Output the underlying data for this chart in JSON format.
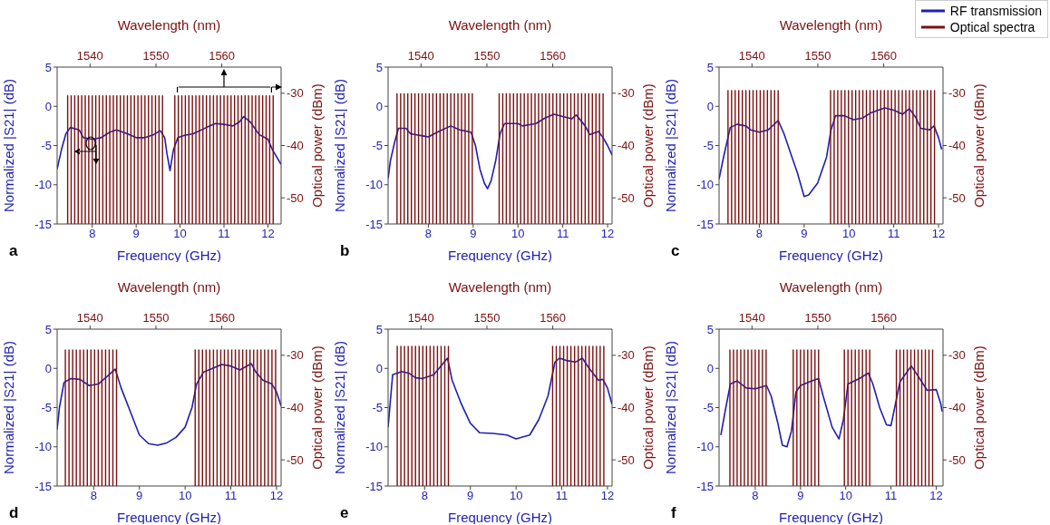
{
  "chart_data": [
    {
      "type": "line",
      "xlabel": "Frequency (GHz)",
      "x2label": "Wavelength (nm)",
      "ylabel": "Normalized |S21| (dB)",
      "y2label": "Optical power (dBm)",
      "annotations": [
        "a"
      ],
      "xlim": [
        7.2,
        12.3
      ],
      "xticks": [
        8,
        9,
        10,
        11,
        12
      ],
      "x2lim": [
        1535,
        1569
      ],
      "x2ticks": [
        1540,
        1550,
        1560
      ],
      "ylim": [
        -15,
        5
      ],
      "yticks": [
        -15,
        -10,
        -5,
        0,
        5
      ],
      "y2lim": [
        -55,
        -25
      ],
      "y2ticks": [
        -50,
        -40,
        -30
      ],
      "marker": "none",
      "line_style": "solid",
      "series": [
        {
          "type": "bar",
          "axis": "y2",
          "color": "#7b1010",
          "x": [
            7.44,
            7.52,
            7.6,
            7.68,
            7.76,
            7.84,
            7.92,
            8.0,
            8.08,
            8.16,
            8.24,
            8.32,
            8.4,
            8.48,
            8.56,
            8.64,
            8.72,
            8.8,
            8.88,
            8.96,
            9.04,
            9.12,
            9.2,
            9.28,
            9.36,
            9.44,
            9.52,
            9.6,
            9.88,
            9.96,
            10.04,
            10.12,
            10.2,
            10.28,
            10.36,
            10.44,
            10.52,
            10.6,
            10.68,
            10.76,
            10.84,
            10.92,
            11.0,
            11.08,
            11.16,
            11.24,
            11.32,
            11.4,
            11.48,
            11.56,
            11.64,
            11.72,
            11.8,
            11.88,
            11.96,
            12.04,
            12.12
          ],
          "base": [
            -55,
            -55,
            -55,
            -55,
            -55,
            -55,
            -55,
            -55,
            -55,
            -55,
            -55,
            -55,
            -55,
            -55,
            -55,
            -55,
            -55,
            -55,
            -55,
            -55,
            -55,
            -55,
            -55,
            -55,
            -55,
            -55,
            -55,
            -55,
            -55,
            -55,
            -55,
            -55,
            -55,
            -55,
            -55,
            -55,
            -55,
            -55,
            -55,
            -55,
            -55,
            -55,
            -55,
            -55,
            -55,
            -55,
            -55,
            -55,
            -55,
            -55,
            -55,
            -55,
            -55,
            -55,
            -55,
            -55,
            -55
          ],
          "values": [
            24.6,
            24.6,
            24.6,
            24.6,
            24.6,
            24.6,
            24.6,
            24.6,
            24.6,
            24.6,
            24.6,
            24.6,
            24.6,
            24.6,
            24.6,
            24.6,
            24.6,
            24.6,
            24.6,
            24.6,
            24.6,
            24.6,
            24.6,
            24.6,
            24.6,
            24.6,
            24.6,
            24.6,
            24.6,
            24.6,
            24.6,
            24.6,
            24.6,
            24.6,
            24.6,
            24.6,
            24.6,
            24.6,
            24.6,
            24.6,
            24.6,
            24.6,
            24.6,
            24.6,
            24.6,
            24.6,
            24.6,
            24.6,
            24.6,
            24.6,
            24.6,
            24.6,
            24.6,
            24.6,
            24.6,
            24.6,
            24.6
          ]
        },
        {
          "color": "#1f1fb0",
          "x": [
            7.2,
            7.3,
            7.4,
            7.5,
            7.7,
            7.8,
            8.0,
            8.2,
            8.4,
            8.55,
            8.8,
            9.0,
            9.2,
            9.4,
            9.55,
            9.65,
            9.7,
            9.77,
            9.85,
            9.95,
            10.1,
            10.3,
            10.6,
            10.8,
            11.0,
            11.2,
            11.35,
            11.45,
            11.6,
            11.8,
            12.0,
            12.1,
            12.3
          ],
          "values": [
            -8,
            -5.5,
            -3.5,
            -2.7,
            -3,
            -4,
            -4.2,
            -4,
            -3.3,
            -3,
            -3.5,
            -4,
            -4,
            -3.6,
            -3.1,
            -4,
            -6,
            -8.2,
            -5.5,
            -4,
            -3.7,
            -3.5,
            -2.7,
            -2.2,
            -2.3,
            -2.5,
            -2,
            -1.3,
            -2,
            -3.6,
            -4.2,
            -5.5,
            -7.4
          ]
        }
      ]
    },
    {
      "type": "line",
      "xlabel": "Frequency (GHz)",
      "x2label": "Wavelength (nm)",
      "ylabel": "Normalized |S21| (dB)",
      "y2label": "Optical power (dBm)",
      "annotations": [
        "b"
      ],
      "xlim": [
        7.1,
        12.1
      ],
      "xticks": [
        8,
        9,
        10,
        11,
        12
      ],
      "x2lim": [
        1535,
        1569
      ],
      "x2ticks": [
        1540,
        1550,
        1560
      ],
      "ylim": [
        -15,
        5
      ],
      "yticks": [
        -15,
        -10,
        -5,
        0,
        5
      ],
      "y2lim": [
        -55,
        -25
      ],
      "y2ticks": [
        -50,
        -40,
        -30
      ],
      "marker": "none",
      "line_style": "solid",
      "series": [
        {
          "type": "bar",
          "axis": "y2",
          "color": "#7b1010",
          "x": [
            7.3,
            7.38,
            7.46,
            7.54,
            7.62,
            7.7,
            7.78,
            7.86,
            7.94,
            8.02,
            8.1,
            8.18,
            8.26,
            8.34,
            8.42,
            8.5,
            8.58,
            8.66,
            8.74,
            8.82,
            8.9,
            8.98,
            9.58,
            9.66,
            9.74,
            9.82,
            9.9,
            9.98,
            10.06,
            10.14,
            10.22,
            10.3,
            10.38,
            10.46,
            10.54,
            10.62,
            10.7,
            10.78,
            10.86,
            10.94,
            11.02,
            11.1,
            11.18,
            11.26,
            11.34,
            11.42,
            11.5,
            11.58,
            11.66,
            11.74,
            11.82,
            11.9
          ],
          "base": [
            -55,
            -55,
            -55,
            -55,
            -55,
            -55,
            -55,
            -55,
            -55,
            -55,
            -55,
            -55,
            -55,
            -55,
            -55,
            -55,
            -55,
            -55,
            -55,
            -55,
            -55,
            -55,
            -55,
            -55,
            -55,
            -55,
            -55,
            -55,
            -55,
            -55,
            -55,
            -55,
            -55,
            -55,
            -55,
            -55,
            -55,
            -55,
            -55,
            -55,
            -55,
            -55,
            -55,
            -55,
            -55,
            -55,
            -55,
            -55,
            -55,
            -55,
            -55,
            -55
          ],
          "values": [
            25,
            25,
            25,
            25,
            25,
            25,
            25,
            25,
            25,
            25,
            25,
            25,
            25,
            25,
            25,
            25,
            25,
            25,
            25,
            25,
            25,
            25,
            25,
            25,
            25,
            25,
            25,
            25,
            25,
            25,
            25,
            25,
            25,
            25,
            25,
            25,
            25,
            25,
            25,
            25,
            25,
            25,
            25,
            25,
            25,
            25,
            25,
            25,
            25,
            25,
            25,
            25
          ]
        },
        {
          "color": "#1f1fb0",
          "x": [
            7.1,
            7.15,
            7.25,
            7.33,
            7.5,
            7.6,
            7.9,
            8.0,
            8.2,
            8.5,
            8.7,
            8.95,
            9.05,
            9.15,
            9.25,
            9.32,
            9.4,
            9.5,
            9.6,
            9.7,
            10.0,
            10.1,
            10.4,
            10.6,
            10.8,
            11.0,
            11.2,
            11.3,
            11.5,
            11.6,
            11.8,
            11.9,
            12.0,
            12.1
          ],
          "values": [
            -9.2,
            -7,
            -4.5,
            -2.8,
            -2.8,
            -3.5,
            -3.8,
            -3.9,
            -3.3,
            -2.5,
            -3,
            -3.3,
            -5,
            -8,
            -9.8,
            -10.5,
            -9.5,
            -7,
            -3.5,
            -2.2,
            -2.2,
            -2.5,
            -2.2,
            -1.5,
            -1,
            -1.3,
            -1.6,
            -1.1,
            -2.5,
            -3.6,
            -3.2,
            -4,
            -5,
            -6.2
          ]
        }
      ]
    },
    {
      "type": "line",
      "xlabel": "Frequency (GHz)",
      "x2label": "Wavelength (nm)",
      "ylabel": "Normalized |S21| (dB)",
      "y2label": "Optical power (dBm)",
      "annotations": [
        "c"
      ],
      "legend": "top right",
      "xlim": [
        7.1,
        12.1
      ],
      "xticks": [
        8,
        9,
        10,
        11,
        12
      ],
      "x2lim": [
        1535,
        1569
      ],
      "x2ticks": [
        1540,
        1550,
        1560
      ],
      "ylim": [
        -15,
        5
      ],
      "yticks": [
        -15,
        -10,
        -5,
        0,
        5
      ],
      "y2lim": [
        -55,
        -25
      ],
      "y2ticks": [
        -50,
        -40,
        -30
      ],
      "marker": "none",
      "line_style": "solid",
      "series": [
        {
          "type": "bar",
          "name": "Optical spectra",
          "axis": "y2",
          "color": "#7b1010",
          "x": [
            7.3,
            7.38,
            7.46,
            7.54,
            7.62,
            7.7,
            7.78,
            7.86,
            7.94,
            8.02,
            8.1,
            8.18,
            8.26,
            8.34,
            8.42,
            9.59,
            9.67,
            9.75,
            9.83,
            9.91,
            9.99,
            10.07,
            10.15,
            10.23,
            10.31,
            10.39,
            10.47,
            10.55,
            10.63,
            10.71,
            10.79,
            10.87,
            10.95,
            11.03,
            11.11,
            11.19,
            11.27,
            11.35,
            11.43,
            11.51,
            11.59,
            11.67,
            11.75,
            11.83,
            11.91
          ],
          "base": [
            -55,
            -55,
            -55,
            -55,
            -55,
            -55,
            -55,
            -55,
            -55,
            -55,
            -55,
            -55,
            -55,
            -55,
            -55,
            -55,
            -55,
            -55,
            -55,
            -55,
            -55,
            -55,
            -55,
            -55,
            -55,
            -55,
            -55,
            -55,
            -55,
            -55,
            -55,
            -55,
            -55,
            -55,
            -55,
            -55,
            -55,
            -55,
            -55,
            -55,
            -55,
            -55,
            -55,
            -55,
            -55
          ],
          "values": [
            25.6,
            25.6,
            25.6,
            25.6,
            25.6,
            25.6,
            25.6,
            25.6,
            25.6,
            25.6,
            25.6,
            25.6,
            25.6,
            25.6,
            25.6,
            25.6,
            25.6,
            25.6,
            25.6,
            25.6,
            25.6,
            25.6,
            25.6,
            25.6,
            25.6,
            25.6,
            25.6,
            25.6,
            25.6,
            25.6,
            25.6,
            25.6,
            25.6,
            25.6,
            25.6,
            25.6,
            25.6,
            25.6,
            25.6,
            25.6,
            25.6,
            25.6,
            25.6,
            25.6,
            25.6
          ]
        },
        {
          "name": "RF transmission",
          "color": "#1f1fb0",
          "x": [
            7.1,
            7.2,
            7.35,
            7.5,
            7.7,
            7.8,
            8.0,
            8.2,
            8.35,
            8.42,
            8.55,
            8.7,
            8.85,
            9.0,
            9.1,
            9.3,
            9.5,
            9.6,
            9.7,
            9.9,
            10.1,
            10.3,
            10.5,
            10.8,
            11.0,
            11.2,
            11.35,
            11.5,
            11.6,
            11.8,
            11.9,
            12.0,
            12.07
          ],
          "values": [
            -9.3,
            -6.5,
            -2.7,
            -2.3,
            -2.5,
            -3,
            -3.3,
            -3,
            -2.2,
            -1.8,
            -3.5,
            -6,
            -8.5,
            -11.5,
            -11.3,
            -9.8,
            -6.5,
            -3,
            -1.2,
            -1.2,
            -1.7,
            -1.5,
            -0.8,
            -0.2,
            -0.5,
            -1,
            -0.3,
            -1.5,
            -2.8,
            -3,
            -2.5,
            -4,
            -5.5
          ]
        }
      ]
    },
    {
      "type": "line",
      "xlabel": "Frequency (GHz)",
      "x2label": "Wavelength (nm)",
      "ylabel": "Normalized |S21| (dB)",
      "y2label": "Optical power (dBm)",
      "annotations": [
        "d"
      ],
      "xlim": [
        7.2,
        12.1
      ],
      "xticks": [
        8,
        9,
        10,
        11,
        12
      ],
      "x2lim": [
        1535,
        1569
      ],
      "x2ticks": [
        1540,
        1550,
        1560
      ],
      "ylim": [
        -15,
        5
      ],
      "yticks": [
        -15,
        -10,
        -5,
        0,
        5
      ],
      "y2lim": [
        -55,
        -25
      ],
      "y2ticks": [
        -50,
        -40,
        -30
      ],
      "marker": "none",
      "line_style": "solid",
      "series": [
        {
          "type": "bar",
          "axis": "y2",
          "color": "#7b1010",
          "x": [
            7.38,
            7.46,
            7.54,
            7.62,
            7.7,
            7.78,
            7.86,
            7.94,
            8.02,
            8.1,
            8.18,
            8.26,
            8.34,
            8.42,
            8.5,
            10.22,
            10.3,
            10.38,
            10.46,
            10.54,
            10.62,
            10.7,
            10.78,
            10.86,
            10.94,
            11.02,
            11.1,
            11.18,
            11.26,
            11.34,
            11.42,
            11.5,
            11.58,
            11.66,
            11.74,
            11.82,
            11.9,
            11.98
          ],
          "base": [
            -55,
            -55,
            -55,
            -55,
            -55,
            -55,
            -55,
            -55,
            -55,
            -55,
            -55,
            -55,
            -55,
            -55,
            -55,
            -55,
            -55,
            -55,
            -55,
            -55,
            -55,
            -55,
            -55,
            -55,
            -55,
            -55,
            -55,
            -55,
            -55,
            -55,
            -55,
            -55,
            -55,
            -55,
            -55,
            -55,
            -55,
            -55
          ],
          "values": [
            26.1,
            26.1,
            26.1,
            26.1,
            26.1,
            26.1,
            26.1,
            26.1,
            26.1,
            26.1,
            26.1,
            26.1,
            26.1,
            26.1,
            26.1,
            26.1,
            26.1,
            26.1,
            26.1,
            26.1,
            26.1,
            26.1,
            26.1,
            26.1,
            26.1,
            26.1,
            26.1,
            26.1,
            26.1,
            26.1,
            26.1,
            26.1,
            26.1,
            26.1,
            26.1,
            26.1,
            26.1,
            26.1
          ]
        },
        {
          "color": "#1f1fb0",
          "x": [
            7.2,
            7.25,
            7.35,
            7.5,
            7.7,
            7.9,
            8.1,
            8.3,
            8.47,
            8.6,
            8.8,
            9.0,
            9.2,
            9.4,
            9.6,
            9.8,
            10.0,
            10.15,
            10.25,
            10.4,
            10.6,
            10.8,
            11.0,
            11.2,
            11.45,
            11.55,
            11.7,
            11.9,
            12.0,
            12.1
          ],
          "values": [
            -7.8,
            -5,
            -1.8,
            -1.3,
            -1.4,
            -2.2,
            -2,
            -1,
            -0.1,
            -2.5,
            -5.5,
            -8.5,
            -9.6,
            -9.8,
            -9.5,
            -8.8,
            -7.5,
            -5,
            -2,
            -0.5,
            0,
            0.5,
            0.3,
            -0.2,
            0.6,
            -0.5,
            -1.5,
            -2,
            -3,
            -4.8
          ]
        }
      ]
    },
    {
      "type": "line",
      "xlabel": "Frequency (GHz)",
      "x2label": "Wavelength (nm)",
      "ylabel": "Normalized |S21| (dB)",
      "y2label": "Optical power (dBm)",
      "annotations": [
        "e"
      ],
      "xlim": [
        7.2,
        12.1
      ],
      "xticks": [
        8,
        9,
        10,
        11,
        12
      ],
      "x2lim": [
        1535,
        1569
      ],
      "x2ticks": [
        1540,
        1550,
        1560
      ],
      "ylim": [
        -15,
        5
      ],
      "yticks": [
        -15,
        -10,
        -5,
        0,
        5
      ],
      "y2lim": [
        -55,
        -25
      ],
      "y2ticks": [
        -50,
        -40,
        -30
      ],
      "marker": "none",
      "line_style": "solid",
      "series": [
        {
          "type": "bar",
          "axis": "y2",
          "color": "#7b1010",
          "x": [
            7.4,
            7.48,
            7.56,
            7.64,
            7.72,
            7.8,
            7.88,
            7.96,
            8.04,
            8.12,
            8.2,
            8.28,
            8.36,
            8.44,
            8.52,
            10.8,
            10.88,
            10.96,
            11.04,
            11.12,
            11.2,
            11.28,
            11.36,
            11.44,
            11.52,
            11.6,
            11.68,
            11.76,
            11.84,
            11.92
          ],
          "base": [
            -55,
            -55,
            -55,
            -55,
            -55,
            -55,
            -55,
            -55,
            -55,
            -55,
            -55,
            -55,
            -55,
            -55,
            -55,
            -55,
            -55,
            -55,
            -55,
            -55,
            -55,
            -55,
            -55,
            -55,
            -55,
            -55,
            -55,
            -55,
            -55,
            -55
          ],
          "values": [
            26.8,
            26.8,
            26.8,
            26.8,
            26.8,
            26.8,
            26.8,
            26.8,
            26.8,
            26.8,
            26.8,
            26.8,
            26.8,
            26.8,
            26.8,
            26.8,
            26.8,
            26.8,
            26.8,
            26.8,
            26.8,
            26.8,
            26.8,
            26.8,
            26.8,
            26.8,
            26.8,
            26.8,
            26.8,
            26.8
          ]
        },
        {
          "color": "#1f1fb0",
          "x": [
            7.2,
            7.3,
            7.5,
            7.65,
            7.8,
            7.95,
            8.2,
            8.4,
            8.5,
            8.6,
            8.8,
            9.0,
            9.2,
            9.5,
            9.8,
            10.0,
            10.3,
            10.5,
            10.7,
            10.85,
            10.95,
            11.1,
            11.3,
            11.45,
            11.6,
            11.8,
            11.9,
            12.0,
            12.1
          ],
          "values": [
            -7.5,
            -0.8,
            -0.4,
            -0.6,
            -1.2,
            -1.3,
            -0.8,
            0.6,
            1.3,
            -1.5,
            -4.5,
            -7,
            -8.2,
            -8.3,
            -8.5,
            -9,
            -8.5,
            -6.5,
            -3.5,
            0.8,
            1.3,
            1,
            0.8,
            1.3,
            0,
            -1.5,
            -1.4,
            -2.5,
            -4.6
          ]
        }
      ]
    },
    {
      "type": "line",
      "xlabel": "Frequency (GHz)",
      "x2label": "Wavelength (nm)",
      "ylabel": "Normalized |S21| (dB)",
      "y2label": "Optical power (dBm)",
      "annotations": [
        "f"
      ],
      "xlim": [
        7.2,
        12.15
      ],
      "xticks": [
        8,
        9,
        10,
        11,
        12
      ],
      "x2lim": [
        1535,
        1569
      ],
      "x2ticks": [
        1540,
        1550,
        1560
      ],
      "ylim": [
        -15,
        5
      ],
      "yticks": [
        -15,
        -10,
        -5,
        0,
        5
      ],
      "y2lim": [
        -55,
        -25
      ],
      "y2ticks": [
        -50,
        -40,
        -30
      ],
      "marker": "none",
      "line_style": "solid",
      "series": [
        {
          "type": "bar",
          "axis": "y2",
          "color": "#7b1010",
          "x": [
            7.44,
            7.52,
            7.6,
            7.68,
            7.76,
            7.84,
            7.92,
            8.0,
            8.08,
            8.16,
            8.24,
            8.84,
            8.92,
            9.0,
            9.08,
            9.16,
            9.24,
            9.32,
            9.4,
            9.97,
            10.05,
            10.13,
            10.21,
            10.29,
            10.37,
            10.45,
            10.53,
            11.12,
            11.2,
            11.28,
            11.36,
            11.44,
            11.52,
            11.6,
            11.68,
            11.76,
            11.84,
            11.92
          ],
          "base": [
            -55,
            -55,
            -55,
            -55,
            -55,
            -55,
            -55,
            -55,
            -55,
            -55,
            -55,
            -55,
            -55,
            -55,
            -55,
            -55,
            -55,
            -55,
            -55,
            -55,
            -55,
            -55,
            -55,
            -55,
            -55,
            -55,
            -55,
            -55,
            -55,
            -55,
            -55,
            -55,
            -55,
            -55,
            -55,
            -55,
            -55,
            -55
          ],
          "values": [
            26.1,
            26.1,
            26.1,
            26.1,
            26.1,
            26.1,
            26.1,
            26.1,
            26.1,
            26.1,
            26.1,
            26.1,
            26.1,
            26.1,
            26.1,
            26.1,
            26.1,
            26.1,
            26.1,
            26.1,
            26.1,
            26.1,
            26.1,
            26.1,
            26.1,
            26.1,
            26.1,
            26.1,
            26.1,
            26.1,
            26.1,
            26.1,
            26.1,
            26.1,
            26.1,
            26.1,
            26.1,
            26.1
          ]
        },
        {
          "color": "#1f1fb0",
          "x": [
            7.24,
            7.35,
            7.45,
            7.6,
            7.8,
            8.0,
            8.25,
            8.35,
            8.5,
            8.6,
            8.7,
            8.8,
            8.9,
            9.0,
            9.2,
            9.4,
            9.5,
            9.7,
            9.85,
            9.95,
            10.05,
            10.3,
            10.5,
            10.6,
            10.75,
            10.9,
            11.0,
            11.1,
            11.2,
            11.45,
            11.6,
            11.8,
            12.0,
            12.1,
            12.13
          ],
          "values": [
            -8.5,
            -5,
            -2,
            -1.6,
            -2.5,
            -2.6,
            -2.2,
            -3.5,
            -7,
            -9.8,
            -10,
            -8,
            -3,
            -2.2,
            -1.7,
            -1.3,
            -3.5,
            -7.5,
            -9,
            -6.5,
            -2,
            -1.3,
            -0.6,
            -2,
            -5,
            -7.2,
            -7.3,
            -4.5,
            -1.7,
            0.3,
            -1,
            -2.8,
            -2.7,
            -4.5,
            -5.5
          ]
        }
      ]
    }
  ]
}
